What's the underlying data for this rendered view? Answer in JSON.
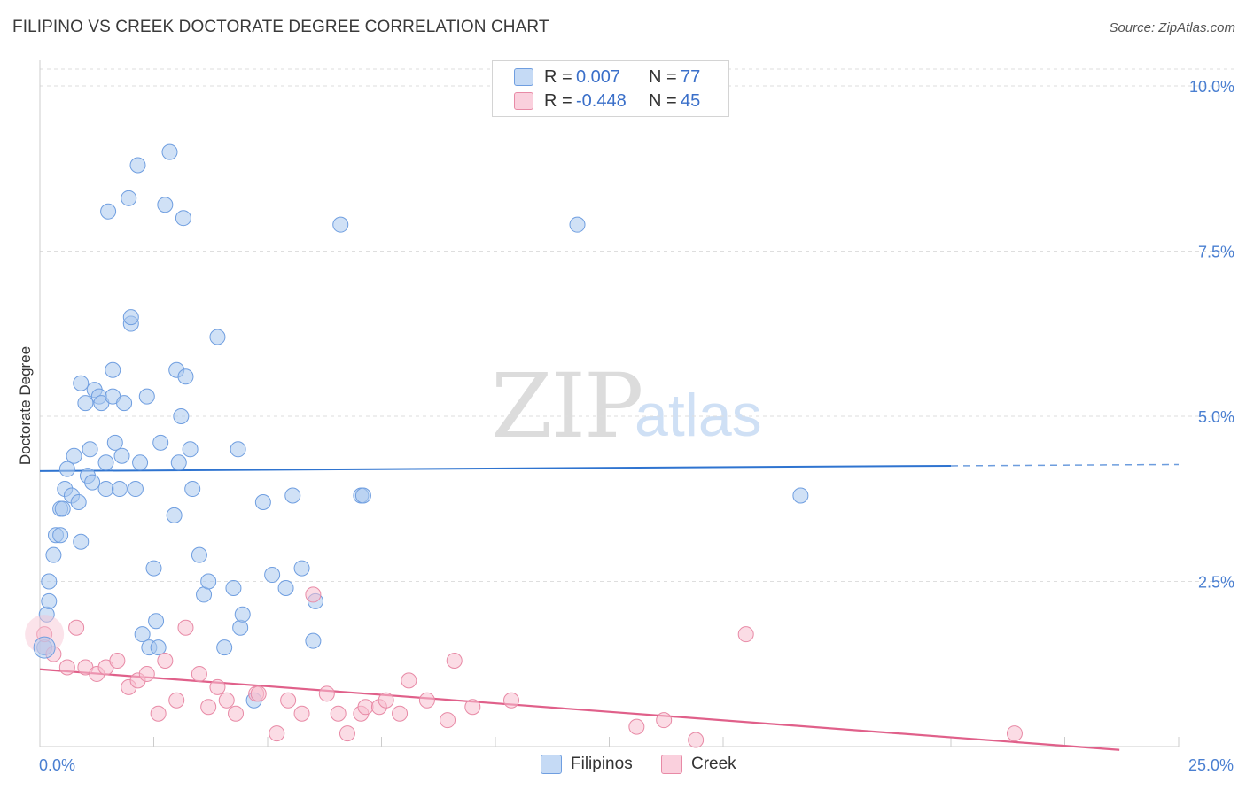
{
  "title": "FILIPINO VS CREEK DOCTORATE DEGREE CORRELATION CHART",
  "source": "Source: ZipAtlas.com",
  "watermark": {
    "zip": "ZIP",
    "atlas": "atlas"
  },
  "legend_stats": [
    {
      "series": "Filipinos",
      "r_label": "R =",
      "r_value": "0.007",
      "n_label": "N =",
      "n_value": "77",
      "color": "#aac8ef",
      "border": "#6f9ee0"
    },
    {
      "series": "Creek",
      "r_label": "R =",
      "r_value": "-0.448",
      "n_label": "N =",
      "n_value": "45",
      "color": "#f7c0d0",
      "border": "#e88aa6"
    }
  ],
  "bottom_legend": [
    {
      "label": "Filipinos",
      "color": "#aac8ef",
      "border": "#6f9ee0"
    },
    {
      "label": "Creek",
      "color": "#f7c0d0",
      "border": "#e88aa6"
    }
  ],
  "chart_data": {
    "type": "scatter",
    "title": "FILIPINO VS CREEK DOCTORATE DEGREE CORRELATION CHART",
    "xlabel": "",
    "ylabel": "Doctorate Degree",
    "xlim": [
      0,
      25
    ],
    "ylim": [
      0,
      10.5
    ],
    "x_ticks": [
      {
        "value": 0,
        "label": "0.0%"
      },
      {
        "value": 25,
        "label": "25.0%"
      }
    ],
    "y_ticks": [
      {
        "value": 2.5,
        "label": "2.5%"
      },
      {
        "value": 5.0,
        "label": "5.0%"
      },
      {
        "value": 7.5,
        "label": "7.5%"
      },
      {
        "value": 10.0,
        "label": "10.0%"
      }
    ],
    "series": [
      {
        "name": "Filipinos",
        "color": "#6f9ee0",
        "fill": "#aac8ef",
        "trend": {
          "x0": 0,
          "y0": 4.17,
          "x1": 20,
          "y1": 4.25,
          "dash_to": 25,
          "dash_y": 4.27,
          "color": "#2f74d0"
        },
        "points": [
          [
            0.1,
            1.5
          ],
          [
            0.15,
            2.0
          ],
          [
            0.2,
            2.2
          ],
          [
            0.2,
            2.5
          ],
          [
            0.3,
            2.9
          ],
          [
            0.35,
            3.2
          ],
          [
            0.45,
            3.2
          ],
          [
            0.45,
            3.6
          ],
          [
            0.5,
            3.6
          ],
          [
            0.55,
            3.9
          ],
          [
            0.6,
            4.2
          ],
          [
            0.7,
            3.8
          ],
          [
            0.75,
            4.4
          ],
          [
            0.85,
            3.7
          ],
          [
            0.9,
            3.1
          ],
          [
            0.9,
            5.5
          ],
          [
            1.0,
            5.2
          ],
          [
            1.05,
            4.1
          ],
          [
            1.1,
            4.5
          ],
          [
            1.15,
            4.0
          ],
          [
            1.2,
            5.4
          ],
          [
            1.3,
            5.3
          ],
          [
            1.35,
            5.2
          ],
          [
            1.45,
            3.9
          ],
          [
            1.45,
            4.3
          ],
          [
            1.5,
            8.1
          ],
          [
            1.6,
            5.3
          ],
          [
            1.6,
            5.7
          ],
          [
            1.65,
            4.6
          ],
          [
            1.75,
            3.9
          ],
          [
            1.8,
            4.4
          ],
          [
            1.85,
            5.2
          ],
          [
            1.95,
            8.3
          ],
          [
            2.0,
            6.4
          ],
          [
            2.0,
            6.5
          ],
          [
            2.1,
            3.9
          ],
          [
            2.15,
            8.8
          ],
          [
            2.2,
            4.3
          ],
          [
            2.25,
            1.7
          ],
          [
            2.35,
            5.3
          ],
          [
            2.4,
            1.5
          ],
          [
            2.5,
            2.7
          ],
          [
            2.55,
            1.9
          ],
          [
            2.6,
            1.5
          ],
          [
            2.65,
            4.6
          ],
          [
            2.75,
            8.2
          ],
          [
            2.85,
            9.0
          ],
          [
            2.95,
            3.5
          ],
          [
            3.0,
            5.7
          ],
          [
            3.05,
            4.3
          ],
          [
            3.1,
            5.0
          ],
          [
            3.15,
            8.0
          ],
          [
            3.2,
            5.6
          ],
          [
            3.3,
            4.5
          ],
          [
            3.35,
            3.9
          ],
          [
            3.5,
            2.9
          ],
          [
            3.6,
            2.3
          ],
          [
            3.7,
            2.5
          ],
          [
            3.9,
            6.2
          ],
          [
            4.05,
            1.5
          ],
          [
            4.25,
            2.4
          ],
          [
            4.35,
            4.5
          ],
          [
            4.4,
            1.8
          ],
          [
            4.45,
            2.0
          ],
          [
            4.7,
            0.7
          ],
          [
            4.9,
            3.7
          ],
          [
            5.1,
            2.6
          ],
          [
            5.4,
            2.4
          ],
          [
            5.55,
            3.8
          ],
          [
            5.75,
            2.7
          ],
          [
            6.0,
            1.6
          ],
          [
            6.05,
            2.2
          ],
          [
            6.6,
            7.9
          ],
          [
            7.05,
            3.8
          ],
          [
            7.1,
            3.8
          ],
          [
            11.8,
            7.9
          ],
          [
            16.7,
            3.8
          ]
        ]
      },
      {
        "name": "Creek",
        "color": "#e88aa6",
        "fill": "#f7c0d0",
        "trend": {
          "x0": 0,
          "y0": 1.17,
          "x1": 23.7,
          "y1": -0.05,
          "color": "#e0608a"
        },
        "points": [
          [
            0.1,
            1.7
          ],
          [
            0.3,
            1.4
          ],
          [
            0.6,
            1.2
          ],
          [
            0.8,
            1.8
          ],
          [
            1.0,
            1.2
          ],
          [
            1.25,
            1.1
          ],
          [
            1.45,
            1.2
          ],
          [
            1.7,
            1.3
          ],
          [
            1.95,
            0.9
          ],
          [
            2.15,
            1.0
          ],
          [
            2.35,
            1.1
          ],
          [
            2.6,
            0.5
          ],
          [
            2.75,
            1.3
          ],
          [
            3.0,
            0.7
          ],
          [
            3.2,
            1.8
          ],
          [
            3.5,
            1.1
          ],
          [
            3.7,
            0.6
          ],
          [
            3.9,
            0.9
          ],
          [
            4.1,
            0.7
          ],
          [
            4.3,
            0.5
          ],
          [
            4.75,
            0.8
          ],
          [
            5.2,
            0.2
          ],
          [
            5.45,
            0.7
          ],
          [
            5.75,
            0.5
          ],
          [
            6.0,
            2.3
          ],
          [
            6.3,
            0.8
          ],
          [
            6.55,
            0.5
          ],
          [
            6.75,
            0.2
          ],
          [
            7.05,
            0.5
          ],
          [
            7.15,
            0.6
          ],
          [
            7.45,
            0.6
          ],
          [
            7.6,
            0.7
          ],
          [
            7.9,
            0.5
          ],
          [
            8.1,
            1.0
          ],
          [
            8.5,
            0.7
          ],
          [
            8.95,
            0.4
          ],
          [
            9.1,
            1.3
          ],
          [
            9.5,
            0.6
          ],
          [
            10.35,
            0.7
          ],
          [
            13.1,
            0.3
          ],
          [
            13.7,
            0.4
          ],
          [
            14.4,
            0.1
          ],
          [
            15.5,
            1.7
          ],
          [
            21.4,
            0.2
          ],
          [
            4.8,
            0.8
          ]
        ]
      }
    ]
  }
}
